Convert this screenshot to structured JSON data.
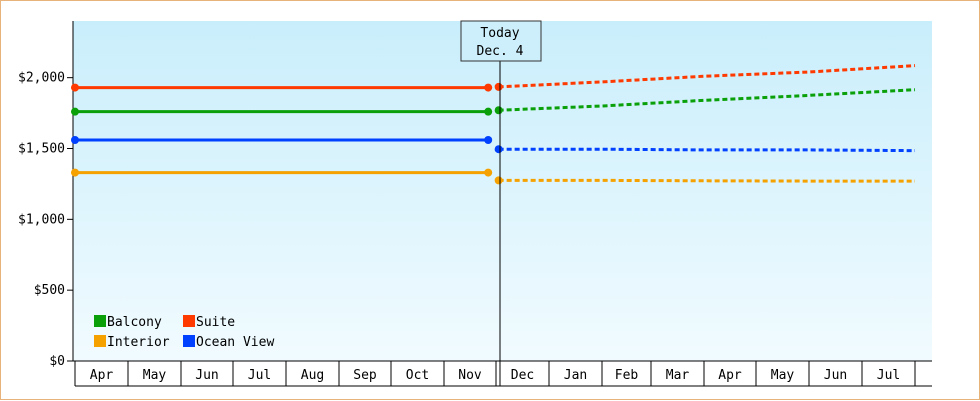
{
  "chart_data": {
    "type": "line",
    "title": "",
    "xlabel": "",
    "ylabel": "",
    "ylim": [
      0,
      2400
    ],
    "yticks": [
      0,
      500,
      1000,
      1500,
      2000
    ],
    "ytick_labels": [
      "$0",
      "$500",
      "$1,000",
      "$1,500",
      "$2,000"
    ],
    "categories": [
      "Apr",
      "May",
      "Jun",
      "Jul",
      "Aug",
      "Sep",
      "Oct",
      "Nov",
      "Dec",
      "Jan",
      "Feb",
      "Mar",
      "Apr",
      "May",
      "Jun",
      "Jul"
    ],
    "today_marker": {
      "line1": "Today",
      "line2": "Dec. 4"
    },
    "grid": false,
    "legend_placement": "bottom-left",
    "series": [
      {
        "name": "Suite",
        "color": "#ff3a00",
        "historical": [
          [
            0,
            1930
          ],
          [
            7.85,
            1930
          ]
        ],
        "forecast": [
          [
            8.05,
            1935
          ],
          [
            10,
            1970
          ],
          [
            12,
            2010
          ],
          [
            14,
            2040
          ],
          [
            16,
            2085
          ]
        ]
      },
      {
        "name": "Balcony",
        "color": "#0aa00a",
        "historical": [
          [
            0,
            1760
          ],
          [
            7.85,
            1760
          ]
        ],
        "forecast": [
          [
            8.05,
            1770
          ],
          [
            10,
            1800
          ],
          [
            12,
            1840
          ],
          [
            14,
            1875
          ],
          [
            16,
            1915
          ]
        ]
      },
      {
        "name": "Ocean View",
        "color": "#0040ff",
        "historical": [
          [
            0,
            1560
          ],
          [
            7.85,
            1560
          ]
        ],
        "forecast": [
          [
            8.05,
            1495
          ],
          [
            10,
            1495
          ],
          [
            12,
            1490
          ],
          [
            14,
            1490
          ],
          [
            16,
            1485
          ]
        ]
      },
      {
        "name": "Interior",
        "color": "#f5a100",
        "historical": [
          [
            0,
            1330
          ],
          [
            7.85,
            1330
          ]
        ],
        "forecast": [
          [
            8.05,
            1275
          ],
          [
            10,
            1275
          ],
          [
            12,
            1272
          ],
          [
            14,
            1270
          ],
          [
            16,
            1270
          ]
        ]
      }
    ],
    "legend": [
      {
        "name": "Balcony",
        "color": "#0aa00a"
      },
      {
        "name": "Suite",
        "color": "#ff3a00"
      },
      {
        "name": "Interior",
        "color": "#f5a100"
      },
      {
        "name": "Ocean View",
        "color": "#0040ff"
      }
    ]
  }
}
